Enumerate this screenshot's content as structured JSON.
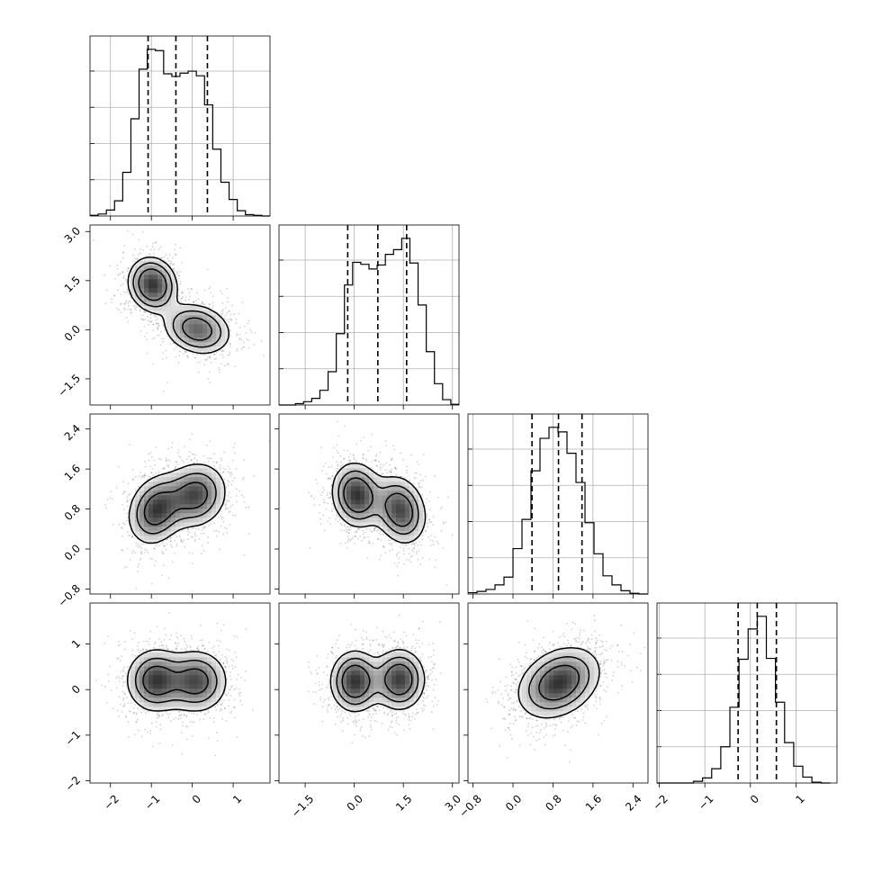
{
  "chart_data": {
    "type": "corner",
    "title": "",
    "n_params": 4,
    "params": [
      {
        "label": "",
        "range": [
          -2.5,
          1.9
        ]
      },
      {
        "label": "",
        "range": [
          -2.3,
          3.2
        ]
      },
      {
        "label": "",
        "range": [
          -0.9,
          2.7
        ]
      },
      {
        "label": "",
        "range": [
          -2.05,
          1.9
        ]
      }
    ],
    "tick_labels": [
      [
        "−2",
        "−1",
        "0",
        "1"
      ],
      [
        "−1.5",
        "0.0",
        "1.5",
        "3.0"
      ],
      [
        "−0.8",
        "0.0",
        "0.8",
        "1.6",
        "2.4"
      ],
      [
        "−2",
        "−1",
        "0",
        "1"
      ]
    ],
    "tick_values": [
      [
        -2,
        -1,
        0,
        1
      ],
      [
        -1.5,
        0.0,
        1.5,
        3.0
      ],
      [
        -0.8,
        0.0,
        0.8,
        1.6,
        2.4
      ],
      [
        -2,
        -1,
        0,
        1
      ]
    ],
    "quantiles": [
      [
        -1.08,
        -0.4,
        0.37
      ],
      [
        -0.2,
        0.72,
        1.6
      ],
      [
        0.38,
        0.91,
        1.38
      ],
      [
        -0.27,
        0.15,
        0.57
      ]
    ],
    "histograms": [
      {
        "bin_edges": [
          -2.5,
          -2.3,
          -2.1,
          -1.9,
          -1.7,
          -1.5,
          -1.3,
          -1.1,
          -0.9,
          -0.7,
          -0.5,
          -0.3,
          -0.1,
          0.1,
          0.3,
          0.5,
          0.7,
          0.9,
          1.1,
          1.3,
          1.5,
          1.7,
          1.9
        ],
        "counts": [
          1,
          3,
          9,
          23,
          66,
          147,
          222,
          252,
          250,
          215,
          211,
          216,
          219,
          212,
          168,
          101,
          51,
          25,
          8,
          2,
          1,
          0
        ]
      },
      {
        "bin_edges": [
          -2.3,
          -2.05,
          -1.8,
          -1.55,
          -1.3,
          -1.05,
          -0.8,
          -0.55,
          -0.3,
          -0.05,
          0.2,
          0.45,
          0.7,
          0.95,
          1.2,
          1.45,
          1.7,
          1.95,
          2.2,
          2.45,
          2.7,
          2.95,
          3.2
        ],
        "counts": [
          0,
          0,
          2,
          5,
          10,
          22,
          50,
          107,
          180,
          214,
          211,
          204,
          210,
          226,
          233,
          250,
          213,
          150,
          80,
          32,
          8,
          1
        ]
      },
      {
        "bin_edges": [
          -0.9,
          -0.72,
          -0.54,
          -0.36,
          -0.18,
          0.0,
          0.18,
          0.36,
          0.54,
          0.72,
          0.9,
          1.08,
          1.26,
          1.44,
          1.62,
          1.8,
          1.98,
          2.16,
          2.34,
          2.52,
          2.7
        ],
        "counts": [
          2,
          4,
          7,
          14,
          26,
          70,
          115,
          190,
          240,
          257,
          250,
          217,
          172,
          110,
          62,
          28,
          14,
          5,
          1,
          0
        ]
      },
      {
        "bin_edges": [
          -2.05,
          -1.85,
          -1.65,
          -1.45,
          -1.25,
          -1.05,
          -0.85,
          -0.65,
          -0.45,
          -0.25,
          -0.05,
          0.15,
          0.35,
          0.55,
          0.75,
          0.95,
          1.15,
          1.35,
          1.55,
          1.75
        ],
        "counts": [
          0,
          0,
          0,
          0,
          2,
          6,
          17,
          43,
          90,
          147,
          183,
          198,
          148,
          96,
          48,
          20,
          7,
          1,
          0
        ]
      }
    ],
    "pairs": [
      {
        "x": 0,
        "y": 1,
        "modes": [
          {
            "mean": [
              -0.97,
              1.38
            ],
            "sd": [
              0.3,
              0.42
            ],
            "rho": -0.1,
            "w": 0.5
          },
          {
            "mean": [
              0.12,
              0.02
            ],
            "sd": [
              0.42,
              0.4
            ],
            "rho": -0.2,
            "w": 0.5
          }
        ]
      },
      {
        "x": 0,
        "y": 2,
        "modes": [
          {
            "mean": [
              -0.88,
              0.78
            ],
            "sd": [
              0.36,
              0.36
            ],
            "rho": 0.2,
            "w": 0.5
          },
          {
            "mean": [
              0.08,
              1.08
            ],
            "sd": [
              0.4,
              0.34
            ],
            "rho": 0.1,
            "w": 0.5
          }
        ]
      },
      {
        "x": 0,
        "y": 3,
        "modes": [
          {
            "mean": [
              -0.9,
              0.2
            ],
            "sd": [
              0.37,
              0.36
            ],
            "rho": 0.0,
            "w": 0.5
          },
          {
            "mean": [
              0.1,
              0.18
            ],
            "sd": [
              0.4,
              0.36
            ],
            "rho": 0.0,
            "w": 0.5
          }
        ]
      },
      {
        "x": 1,
        "y": 2,
        "modes": [
          {
            "mean": [
              0.08,
              1.08
            ],
            "sd": [
              0.4,
              0.34
            ],
            "rho": -0.1,
            "w": 0.5
          },
          {
            "mean": [
              1.4,
              0.78
            ],
            "sd": [
              0.42,
              0.36
            ],
            "rho": -0.2,
            "w": 0.5
          }
        ]
      },
      {
        "x": 1,
        "y": 3,
        "modes": [
          {
            "mean": [
              0.02,
              0.18
            ],
            "sd": [
              0.4,
              0.36
            ],
            "rho": 0.0,
            "w": 0.5
          },
          {
            "mean": [
              1.38,
              0.22
            ],
            "sd": [
              0.42,
              0.36
            ],
            "rho": 0.0,
            "w": 0.5
          }
        ]
      },
      {
        "x": 2,
        "y": 3,
        "modes": [
          {
            "mean": [
              0.92,
              0.15
            ],
            "sd": [
              0.4,
              0.38
            ],
            "rho": 0.3,
            "w": 1.0
          }
        ]
      }
    ],
    "contour_levels": [
      0.39,
      0.86,
      1.0
    ],
    "grid": true,
    "legend": "none"
  }
}
